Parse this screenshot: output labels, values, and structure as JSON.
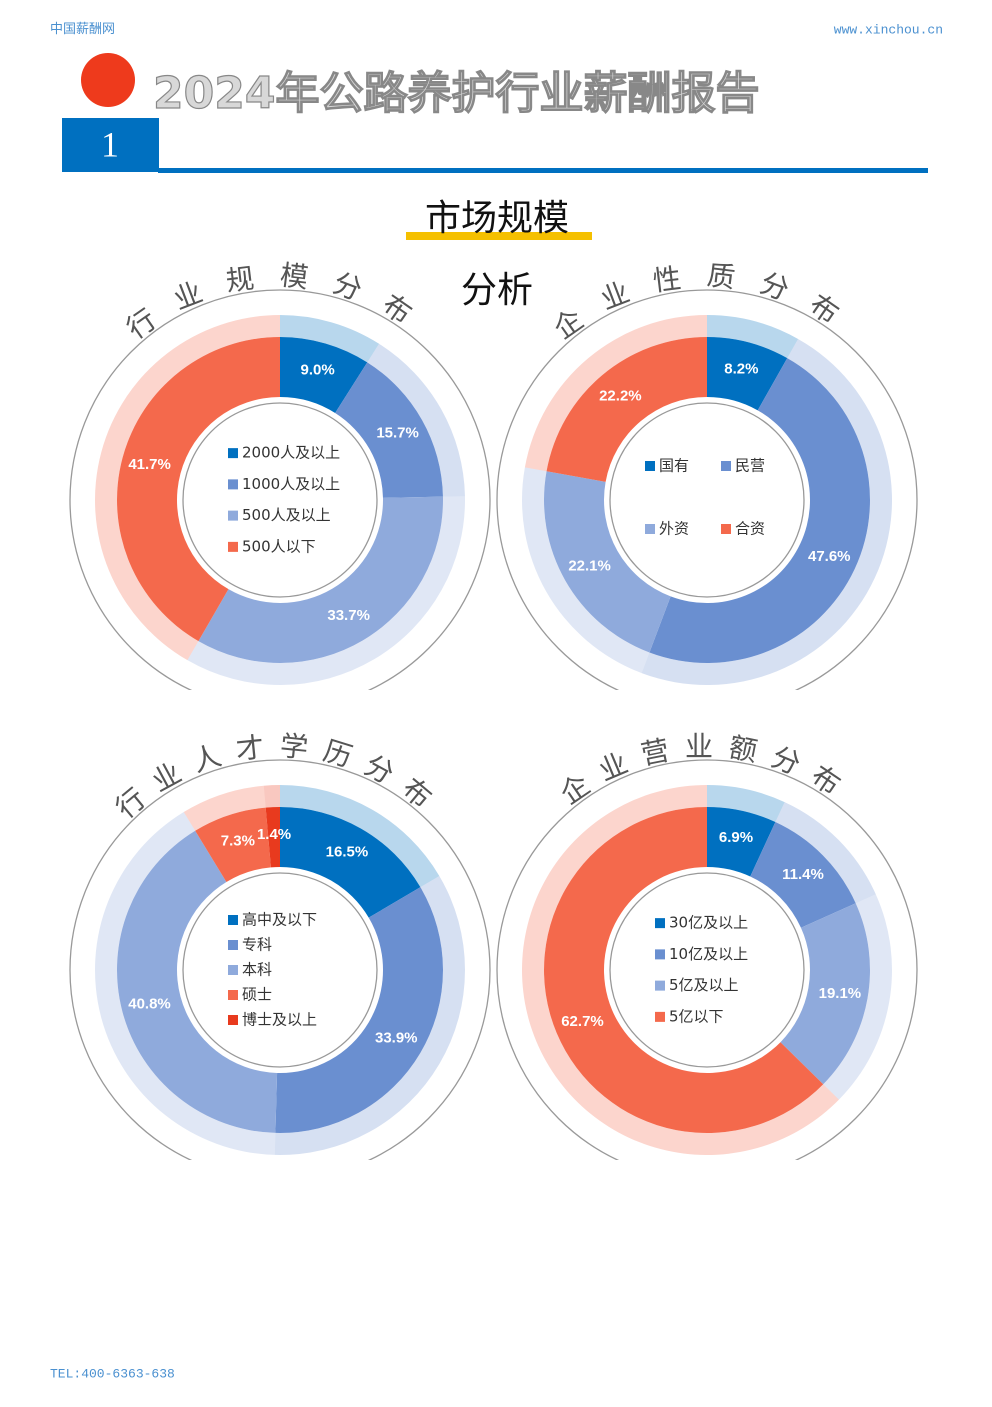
{
  "header": {
    "site": "中国薪酬网",
    "url": "www.xinchou.cn",
    "title": "2024年公路养护行业薪酬报告",
    "number": "1"
  },
  "section": {
    "title": "市场规模",
    "subtitle": "分析"
  },
  "chart_data": [
    {
      "type": "donut",
      "title": "行业规模分布",
      "categories": [
        "2000人及以上",
        "1000人及以上",
        "500人及以上",
        "500人以下"
      ],
      "values": [
        9.0,
        15.7,
        33.7,
        41.7
      ],
      "value_labels": [
        "9.0%",
        "15.7%",
        "33.7%",
        "41.7%"
      ],
      "colors": [
        "#0070c0",
        "#6a8fd0",
        "#8faadc",
        "#f4694c"
      ]
    },
    {
      "type": "donut",
      "title": "企业性质分布",
      "categories": [
        "国有",
        "民营",
        "外资",
        "合资"
      ],
      "values": [
        8.2,
        47.6,
        22.1,
        22.2
      ],
      "value_labels": [
        "8.2%",
        "47.6%",
        "22.1%",
        "22.2%"
      ],
      "colors": [
        "#0070c0",
        "#6a8fd0",
        "#8faadc",
        "#f4694c"
      ]
    },
    {
      "type": "donut",
      "title": "行业人才学历分布",
      "categories": [
        "高中及以下",
        "专科",
        "本科",
        "硕士",
        "博士及以上"
      ],
      "values": [
        16.5,
        33.9,
        40.8,
        7.3,
        1.4
      ],
      "value_labels": [
        "16.5%",
        "33.9%",
        "40.8%",
        "7.3%",
        "1.4%"
      ],
      "colors": [
        "#0070c0",
        "#6a8fd0",
        "#8faadc",
        "#f4694c",
        "#e83a1e"
      ]
    },
    {
      "type": "donut",
      "title": "企业营业额分布",
      "categories": [
        "30亿及以上",
        "10亿及以上",
        "5亿及以上",
        "5亿以下"
      ],
      "values": [
        6.9,
        11.4,
        19.1,
        62.7
      ],
      "value_labels": [
        "6.9%",
        "11.4%",
        "19.1%",
        "62.7%"
      ],
      "colors": [
        "#0070c0",
        "#6a8fd0",
        "#8faadc",
        "#f4694c"
      ]
    }
  ],
  "footer": {
    "tel": "TEL:400-6363-638"
  }
}
